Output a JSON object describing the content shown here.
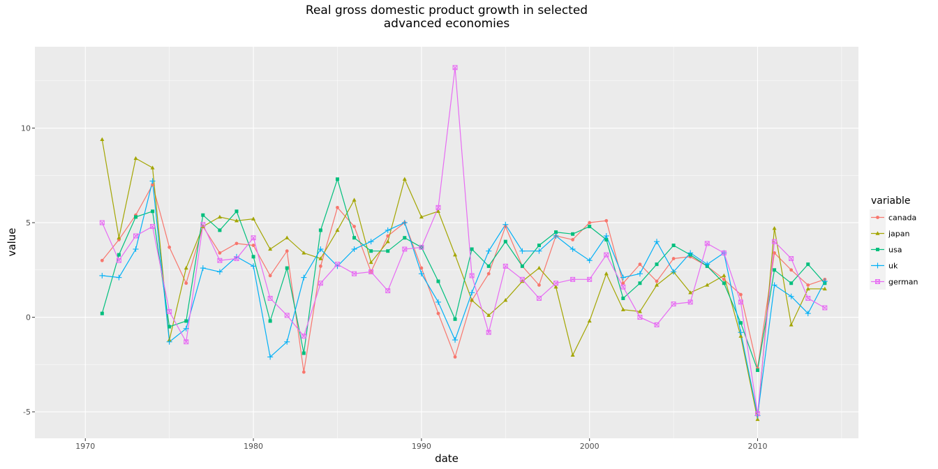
{
  "chart_data": {
    "type": "line",
    "title_line1": "Real gross domestic product growth in selected",
    "title_line2": "advanced economies",
    "xlabel": "date",
    "ylabel": "value",
    "xlim": [
      1967.0,
      2016.0
    ],
    "ylim": [
      -6.4,
      14.3
    ],
    "x_ticks": [
      1970,
      1980,
      1990,
      2000,
      2010
    ],
    "y_ticks": [
      -5,
      0,
      5,
      10
    ],
    "y_tick_labels": [
      "-5",
      "0",
      "5",
      "10"
    ],
    "grid": true,
    "legend_position": "right",
    "legend_title": "variable",
    "x": [
      1971,
      1972,
      1973,
      1974,
      1975,
      1976,
      1977,
      1978,
      1979,
      1980,
      1981,
      1982,
      1983,
      1984,
      1985,
      1986,
      1987,
      1988,
      1989,
      1990,
      1991,
      1992,
      1993,
      1994,
      1995,
      1996,
      1997,
      1998,
      1999,
      2000,
      2001,
      2002,
      2003,
      2004,
      2005,
      2006,
      2007,
      2008,
      2009,
      2010,
      2011,
      2012,
      2013,
      2014
    ],
    "series": [
      {
        "name": "canada",
        "color": "#F8766D",
        "marker": "circle",
        "values": [
          3.0,
          4.1,
          5.4,
          7.0,
          3.7,
          1.8,
          4.8,
          3.4,
          3.9,
          3.8,
          2.2,
          3.5,
          -2.9,
          2.7,
          5.8,
          4.8,
          2.4,
          4.3,
          5.0,
          2.6,
          0.2,
          -2.1,
          0.9,
          2.3,
          4.8,
          2.7,
          1.7,
          4.3,
          4.1,
          5.0,
          5.1,
          1.8,
          2.8,
          1.9,
          3.1,
          3.2,
          2.7,
          2.0,
          1.2,
          -2.7,
          3.4,
          2.5,
          1.7,
          2.0
        ]
      },
      {
        "name": "japan",
        "color": "#A3A500",
        "marker": "triangle",
        "values": [
          9.4,
          4.2,
          8.4,
          7.9,
          -1.2,
          2.6,
          4.8,
          5.3,
          5.1,
          5.2,
          3.6,
          4.2,
          3.4,
          3.1,
          4.6,
          6.2,
          2.9,
          4.0,
          7.3,
          5.3,
          5.6,
          3.3,
          0.9,
          0.1,
          0.9,
          1.9,
          2.6,
          1.6,
          -2.0,
          -0.2,
          2.3,
          0.4,
          0.3,
          1.7,
          2.4,
          1.3,
          1.7,
          2.2,
          -1.0,
          -5.4,
          4.7,
          -0.4,
          1.5,
          1.5
        ]
      },
      {
        "name": "usa",
        "color": "#00BF7D",
        "marker": "square",
        "values": [
          0.2,
          3.3,
          5.3,
          5.6,
          -0.5,
          -0.2,
          5.4,
          4.6,
          5.6,
          3.2,
          -0.2,
          2.6,
          -1.9,
          4.6,
          7.3,
          4.2,
          3.5,
          3.5,
          4.2,
          3.7,
          1.9,
          -0.1,
          3.6,
          2.7,
          4.0,
          2.7,
          3.8,
          4.5,
          4.4,
          4.8,
          4.1,
          1.0,
          1.8,
          2.8,
          3.8,
          3.3,
          2.7,
          1.8,
          -0.3,
          -2.8,
          2.5,
          1.8,
          2.8,
          1.8
        ]
      },
      {
        "name": "uk",
        "color": "#00B0F6",
        "marker": "plus",
        "values": [
          2.2,
          2.1,
          3.6,
          7.2,
          -1.3,
          -0.6,
          2.6,
          2.4,
          3.2,
          2.7,
          -2.1,
          -1.3,
          2.1,
          3.6,
          2.7,
          3.6,
          4.0,
          4.6,
          5.0,
          2.3,
          0.8,
          -1.2,
          1.3,
          3.5,
          4.9,
          3.5,
          3.5,
          4.3,
          3.6,
          3.0,
          4.3,
          2.1,
          2.3,
          4.0,
          2.4,
          3.4,
          2.8,
          3.4,
          -0.8,
          -5.2,
          1.7,
          1.1,
          0.2,
          1.9
        ]
      },
      {
        "name": "german",
        "color": "#E76BF3",
        "marker": "boxx",
        "values": [
          5.0,
          3.0,
          4.3,
          4.8,
          0.3,
          -1.3,
          4.9,
          3.0,
          3.1,
          4.2,
          1.0,
          0.1,
          -1.0,
          1.8,
          2.8,
          2.3,
          2.4,
          1.4,
          3.6,
          3.7,
          5.8,
          13.2,
          2.2,
          -0.8,
          2.7,
          2.0,
          1.0,
          1.8,
          2.0,
          2.0,
          3.3,
          1.6,
          0.0,
          -0.4,
          0.7,
          0.8,
          3.9,
          3.4,
          0.8,
          -5.1,
          4.0,
          3.1,
          1.0,
          0.5
        ]
      }
    ]
  }
}
